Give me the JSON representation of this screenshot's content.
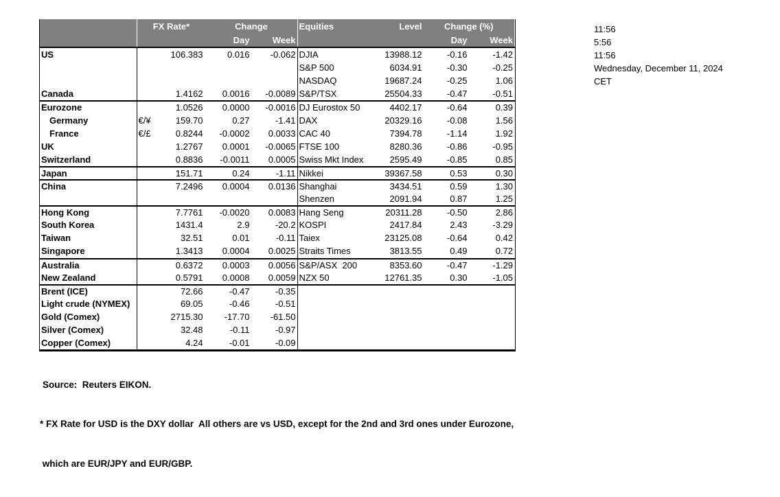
{
  "header": {
    "fx_rate": "FX Rate*",
    "change": "Change",
    "day": "Day",
    "week": "Week",
    "equities": "Equities",
    "level": "Level",
    "change_pct": "Change (%)"
  },
  "rows": [
    {
      "left": {
        "label": "US",
        "rate": "106.383",
        "day": "0.016",
        "week": "-0.062"
      },
      "right": {
        "name": "DJIA",
        "level": "13988.12",
        "day": "-0.16",
        "week": "-1.42"
      }
    },
    {
      "left": {},
      "right": {
        "name": "S&P 500",
        "level": "6034.91",
        "day": "-0.30",
        "week": "-0.25"
      }
    },
    {
      "left": {},
      "right": {
        "name": "NASDAQ",
        "level": "19687.24",
        "day": "-0.25",
        "week": "1.06"
      }
    },
    {
      "left": {
        "label": "Canada",
        "rate": "1.4162",
        "day": "0.0016",
        "week": "-0.0089"
      },
      "right": {
        "name": "S&P/TSX",
        "level": "25504.33",
        "day": "-0.47",
        "week": "-0.51"
      }
    },
    {
      "sep": true,
      "left": {
        "label": "Eurozone",
        "rate": "1.0526",
        "day": "0.0000",
        "week": "-0.0016"
      },
      "right": {
        "name": "DJ Eurostox 50",
        "level": "4402.17",
        "day": "-0.64",
        "week": "0.39"
      }
    },
    {
      "left": {
        "label": "Germany",
        "indent": true,
        "pair": "€/¥",
        "rate": "159.70",
        "day": "0.27",
        "week": "-1.41"
      },
      "right": {
        "name": "DAX",
        "level": "20329.16",
        "day": "-0.08",
        "week": "1.56"
      }
    },
    {
      "left": {
        "label": "France",
        "indent": true,
        "pair": "€/£",
        "rate": "0.8244",
        "day": "-0.0002",
        "week": "0.0033"
      },
      "right": {
        "name": "CAC 40",
        "level": "7394.78",
        "day": "-1.14",
        "week": "1.92"
      }
    },
    {
      "left": {
        "label": "UK",
        "rate": "1.2767",
        "day": "0.0001",
        "week": "-0.0065"
      },
      "right": {
        "name": "FTSE 100",
        "level": "8280.36",
        "day": "-0.86",
        "week": "-0.95"
      }
    },
    {
      "left": {
        "label": "Switzerland",
        "rate": "0.8836",
        "day": "-0.0011",
        "week": "0.0005"
      },
      "right": {
        "name": "Swiss Mkt Index",
        "level": "2595.49",
        "day": "-0.85",
        "week": "0.85"
      }
    },
    {
      "sep": true,
      "left": {
        "label": "Japan",
        "rate": "151.71",
        "day": "0.24",
        "week": "-1.11"
      },
      "right": {
        "name": "Nikkei",
        "level": "39367.58",
        "day": "0.53",
        "week": "0.30"
      }
    },
    {
      "sep": true,
      "left": {
        "label": "China",
        "rate": "7.2496",
        "day": "0.0004",
        "week": "0.0136"
      },
      "right": {
        "name": "Shanghai",
        "level": "3434.51",
        "day": "0.59",
        "week": "1.30"
      }
    },
    {
      "left": {},
      "right": {
        "name": "Shenzen",
        "level": "2091.94",
        "day": "0.87",
        "week": "1.25"
      }
    },
    {
      "sep": true,
      "left": {
        "label": "Hong Kong",
        "rate": "7.7761",
        "day": "-0.0020",
        "week": "0.0083"
      },
      "right": {
        "name": "Hang Seng",
        "level": "20311.28",
        "day": "-0.50",
        "week": "2.86"
      }
    },
    {
      "left": {
        "label": "South Korea",
        "rate": "1431.4",
        "day": "2.9",
        "week": "-20.2"
      },
      "right": {
        "name": "KOSPI",
        "level": "2417.84",
        "day": "2.43",
        "week": "-3.29"
      }
    },
    {
      "left": {
        "label": "Taiwan",
        "rate": "32.51",
        "day": "0.01",
        "week": "-0.11"
      },
      "right": {
        "name": "Taiex",
        "level": "23125.08",
        "day": "-0.64",
        "week": "0.42"
      }
    },
    {
      "left": {
        "label": "Singapore",
        "rate": "1.3413",
        "day": "0.0004",
        "week": "0.0025"
      },
      "right": {
        "name": "Straits Times",
        "level": "3813.55",
        "day": "0.49",
        "week": "0.72"
      }
    },
    {
      "sep": true,
      "left": {
        "label": "Australia",
        "rate": "0.6372",
        "day": "0.0003",
        "week": "0.0056"
      },
      "right": {
        "name": "S&P/ASX  200",
        "level": "8353.60",
        "day": "-0.47",
        "week": "-1.29"
      }
    },
    {
      "left": {
        "label": "New Zealand",
        "rate": "0.5791",
        "day": "0.0008",
        "week": "0.0059"
      },
      "right": {
        "name": "NZX 50",
        "level": "12761.35",
        "day": "0.30",
        "week": "-1.05"
      }
    },
    {
      "sep": true,
      "left": {
        "label": "Brent (ICE)",
        "rate": "72.66",
        "day": "-0.47",
        "week": "-0.35"
      },
      "right": {}
    },
    {
      "left": {
        "label": "Light crude (NYMEX)",
        "rate": "69.05",
        "day": "-0.46",
        "week": "-0.51"
      },
      "right": {}
    },
    {
      "left": {
        "label": "Gold (Comex)",
        "rate": "2715.30",
        "day": "-17.70",
        "week": "-61.50"
      },
      "right": {}
    },
    {
      "left": {
        "label": "Silver (Comex)",
        "rate": "32.48",
        "day": "-0.11",
        "week": "-0.97"
      },
      "right": {}
    },
    {
      "left": {
        "label": "Copper (Comex)",
        "rate": "4.24",
        "day": "-0.01",
        "week": "-0.09"
      },
      "right": {}
    }
  ],
  "clock": [
    "11:56",
    "5:56",
    "11:56",
    "Wednesday, December 11, 2024",
    "CET"
  ],
  "footer": {
    "source": "Source:  Reuters EIKON.",
    "note1": "* FX Rate for USD is the DXY dollar  All others are vs USD, except for the 2nd and 3rd ones under Eurozone,",
    "note2": " which are EUR/JPY and EUR/GBP."
  },
  "colors": {
    "header_bg": "#808080",
    "header_text": "#ffffff",
    "border": "#000000"
  }
}
